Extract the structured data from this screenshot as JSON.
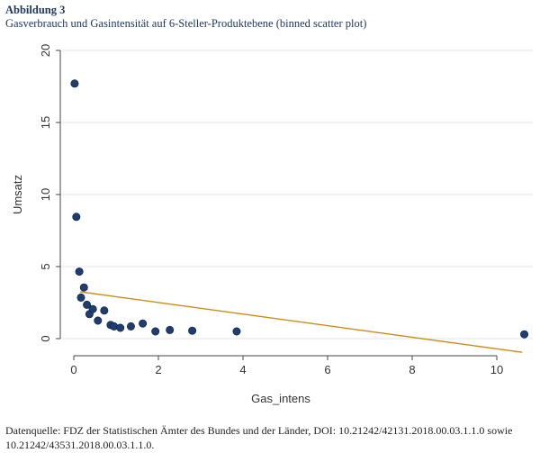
{
  "figure": {
    "label": "Abbildung 3",
    "title": "Gasverbrauch und Gasintensität auf 6-Steller-Produktebene (binned scatter plot)",
    "source": "Datenquelle: FDZ der Statistischen Ämter des Bundes und der Länder, DOI: 10.21242/42131.2018.00.03.1.1.0 sowie 10.21242/43531.2018.00.03.1.1.0."
  },
  "colors": {
    "points": "#1f3d6e",
    "fit_line": "#d08a16",
    "grid": "#e4e4e4",
    "axis": "#444444"
  },
  "chart_data": {
    "type": "scatter",
    "title": "",
    "xlabel": "Gas_intens",
    "ylabel": "Umsatz",
    "xlim": [
      0,
      10.8
    ],
    "ylim": [
      0,
      20
    ],
    "xticks": [
      0,
      2,
      4,
      6,
      8,
      10
    ],
    "yticks": [
      0,
      5,
      10,
      15,
      20
    ],
    "grid": "horizontal",
    "points": [
      {
        "x": 0.02,
        "y": 17.7
      },
      {
        "x": 0.06,
        "y": 8.45
      },
      {
        "x": 0.13,
        "y": 4.65
      },
      {
        "x": 0.17,
        "y": 2.85
      },
      {
        "x": 0.24,
        "y": 3.55
      },
      {
        "x": 0.31,
        "y": 2.35
      },
      {
        "x": 0.37,
        "y": 1.7
      },
      {
        "x": 0.45,
        "y": 2.05
      },
      {
        "x": 0.57,
        "y": 1.25
      },
      {
        "x": 0.72,
        "y": 1.95
      },
      {
        "x": 0.87,
        "y": 0.95
      },
      {
        "x": 0.95,
        "y": 0.85
      },
      {
        "x": 1.1,
        "y": 0.75
      },
      {
        "x": 1.35,
        "y": 0.85
      },
      {
        "x": 1.63,
        "y": 1.05
      },
      {
        "x": 1.93,
        "y": 0.5
      },
      {
        "x": 2.27,
        "y": 0.6
      },
      {
        "x": 2.8,
        "y": 0.55
      },
      {
        "x": 3.85,
        "y": 0.5
      },
      {
        "x": 10.65,
        "y": 0.3
      }
    ],
    "fit_line": {
      "x": [
        0.15,
        10.6
      ],
      "y": [
        3.25,
        -0.95
      ]
    }
  }
}
